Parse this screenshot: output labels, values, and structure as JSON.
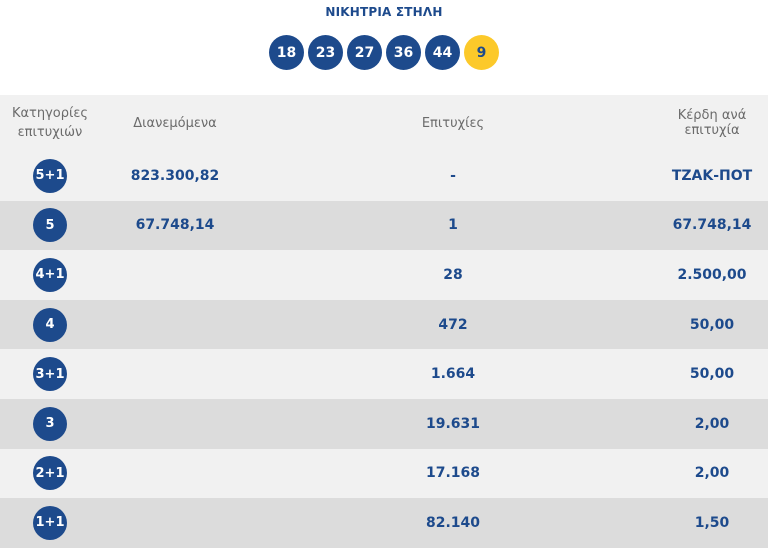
{
  "header": {
    "title": "ΝΙΚΗΤΡΙΑ ΣΤΗΛΗ",
    "balls": [
      "18",
      "23",
      "27",
      "36",
      "44"
    ],
    "bonus": "9",
    "colors": {
      "main_ball": "#1d4a8c",
      "bonus_ball": "#fcc92a"
    }
  },
  "table": {
    "columns": [
      "Κατηγορίες επιτυχιών",
      "Διανεμόμενα",
      "Επιτυχίες",
      "Κέρδη ανά επιτυχία"
    ],
    "rows": [
      {
        "category": "5+1",
        "distributed": "823.300,82",
        "winners": "-",
        "prize": "ΤΖΑΚ-ΠΟΤ"
      },
      {
        "category": "5",
        "distributed": "67.748,14",
        "winners": "1",
        "prize": "67.748,14"
      },
      {
        "category": "4+1",
        "distributed": "",
        "winners": "28",
        "prize": "2.500,00"
      },
      {
        "category": "4",
        "distributed": "",
        "winners": "472",
        "prize": "50,00"
      },
      {
        "category": "3+1",
        "distributed": "",
        "winners": "1.664",
        "prize": "50,00"
      },
      {
        "category": "3",
        "distributed": "",
        "winners": "19.631",
        "prize": "2,00"
      },
      {
        "category": "2+1",
        "distributed": "",
        "winners": "17.168",
        "prize": "2,00"
      },
      {
        "category": "1+1",
        "distributed": "",
        "winners": "82.140",
        "prize": "1,50"
      }
    ]
  }
}
